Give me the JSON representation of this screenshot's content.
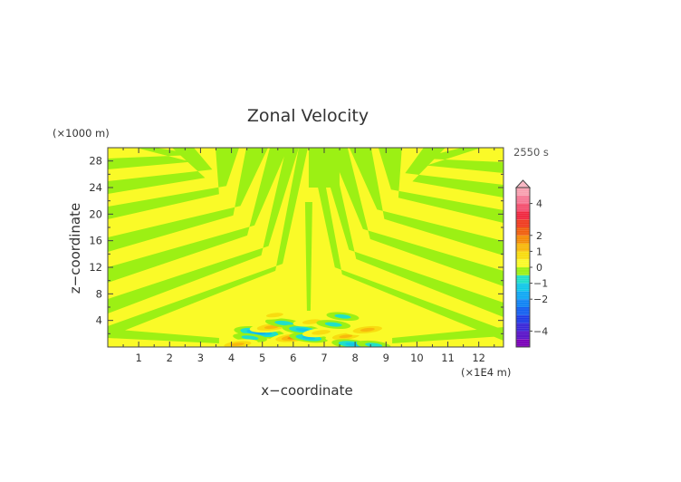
{
  "chart_data": {
    "type": "heatmap",
    "title": "Zonal Velocity",
    "xlabel": "x−coordinate",
    "ylabel": "z−coordinate",
    "x_units": "(×1E4 m)",
    "y_units": "(×1000 m)",
    "time_label": "2550 s",
    "xlim": [
      0,
      12.8
    ],
    "ylim": [
      0,
      30
    ],
    "x_ticks": [
      1,
      2,
      3,
      4,
      5,
      6,
      7,
      8,
      9,
      10,
      11,
      12
    ],
    "y_ticks": [
      4,
      8,
      12,
      16,
      20,
      24,
      28
    ],
    "x_tick_labels": [
      "1",
      "2",
      "3",
      "4",
      "5",
      "6",
      "7",
      "8",
      "9",
      "10",
      "11",
      "12"
    ],
    "y_tick_labels": [
      "4",
      "8",
      "12",
      "16",
      "20",
      "24",
      "28"
    ],
    "colorbar": {
      "levels": [
        -5,
        -4.5,
        -4,
        -3.5,
        -3,
        -2.5,
        -2,
        -1.5,
        -1,
        -0.5,
        0,
        0.5,
        1,
        1.5,
        2,
        2.5,
        3,
        3.5,
        4,
        4.5,
        5
      ],
      "colors": [
        "#7a00b8",
        "#5a14c8",
        "#3a28d8",
        "#1e3ce6",
        "#1460f0",
        "#1084f4",
        "#10a8f4",
        "#12c8e8",
        "#20e0c8",
        "#9cf014",
        "#fafa28",
        "#f8dc10",
        "#f8b80c",
        "#f48c08",
        "#f06010",
        "#f03c20",
        "#f02840",
        "#f45070",
        "#f67894",
        "#f8a0b0"
      ],
      "labels": [
        {
          "value": 4,
          "text": "4"
        },
        {
          "value": 2,
          "text": "2"
        },
        {
          "value": 1,
          "text": "1"
        },
        {
          "value": 0,
          "text": "0"
        },
        {
          "value": -1,
          "text": "−1"
        },
        {
          "value": -2,
          "text": "−2"
        },
        {
          "value": -4,
          "text": "−4"
        }
      ],
      "extend_max": true
    },
    "band_colors": {
      "positive": "#fafa28",
      "negative": "#9cf014"
    },
    "features": [
      {
        "x": 4.9,
        "z": 2.2,
        "value": -2.0
      },
      {
        "x": 4.6,
        "z": 1.4,
        "value": -1.0
      },
      {
        "x": 5.3,
        "z": 3.0,
        "value": 1.6
      },
      {
        "x": 4.2,
        "z": 0.4,
        "value": 1.4
      },
      {
        "x": 5.7,
        "z": 3.6,
        "value": -1.2
      },
      {
        "x": 6.0,
        "z": 1.4,
        "value": 1.8
      },
      {
        "x": 6.3,
        "z": 2.6,
        "value": -1.4
      },
      {
        "x": 6.6,
        "z": 3.8,
        "value": 1.2
      },
      {
        "x": 6.5,
        "z": 1.4,
        "value": -1.3
      },
      {
        "x": 6.9,
        "z": 2.2,
        "value": 1.2
      },
      {
        "x": 7.3,
        "z": 3.4,
        "value": -1.0
      },
      {
        "x": 7.7,
        "z": 1.6,
        "value": 1.4
      },
      {
        "x": 8.4,
        "z": 2.6,
        "value": 1.6
      },
      {
        "x": 7.9,
        "z": 0.4,
        "value": -1.4
      },
      {
        "x": 8.6,
        "z": 0.3,
        "value": -1.0
      },
      {
        "x": 5.4,
        "z": 4.8,
        "value": 1.0
      },
      {
        "x": 7.6,
        "z": 4.6,
        "value": -0.9
      }
    ]
  }
}
